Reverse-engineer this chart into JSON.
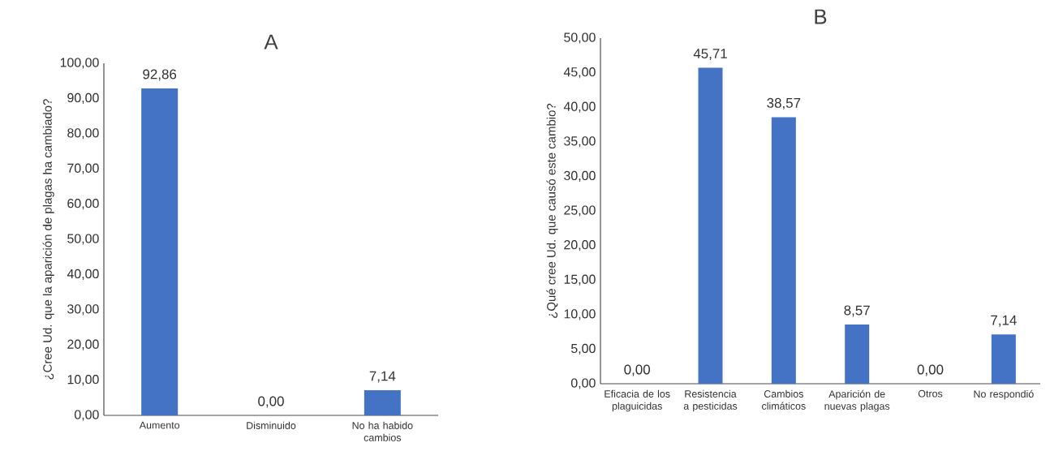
{
  "chart_data": [
    {
      "type": "bar",
      "title": "A",
      "ylabel": "¿Cree Ud. que la aparición de plagas ha cambiado?",
      "categories": [
        "Aumento",
        "Disminuido",
        "No ha habido cambios"
      ],
      "values": [
        92.86,
        0,
        7.14
      ],
      "value_labels": [
        "92,86",
        "0,00",
        "7,14"
      ],
      "color": "#4472c4",
      "ylim": [
        0,
        100
      ],
      "yticks": [
        {
          "value": 0,
          "label": "0,00"
        },
        {
          "value": 10,
          "label": "10,00"
        },
        {
          "value": 20,
          "label": "20,00"
        },
        {
          "value": 30,
          "label": "30,00"
        },
        {
          "value": 40,
          "label": "40,00"
        },
        {
          "value": 50,
          "label": "50,00"
        },
        {
          "value": 60,
          "label": "60,00"
        },
        {
          "value": 70,
          "label": "70,00"
        },
        {
          "value": 80,
          "label": "80,00"
        },
        {
          "value": 90,
          "label": "90,00"
        },
        {
          "value": 100,
          "label": "100,00"
        }
      ]
    },
    {
      "type": "bar",
      "title": "B",
      "ylabel": "¿Qué cree Ud. que causó este cambio?",
      "categories": [
        "Eficacia de los plaguicidas",
        "Resistencia a pesticidas",
        "Cambios climáticos",
        "Aparición de nuevas plagas",
        "Otros",
        "No respondió"
      ],
      "values": [
        0,
        45.71,
        38.57,
        8.57,
        0,
        7.14
      ],
      "value_labels": [
        "0,00",
        "45,71",
        "38,57",
        "8,57",
        "0,00",
        "7,14"
      ],
      "color": "#4472c4",
      "ylim": [
        0,
        50
      ],
      "yticks": [
        {
          "value": 0,
          "label": "0,00"
        },
        {
          "value": 5,
          "label": "5,00"
        },
        {
          "value": 10,
          "label": "10,00"
        },
        {
          "value": 15,
          "label": "15,00"
        },
        {
          "value": 20,
          "label": "20,00"
        },
        {
          "value": 25,
          "label": "25,00"
        },
        {
          "value": 30,
          "label": "30,00"
        },
        {
          "value": 35,
          "label": "35,00"
        },
        {
          "value": 40,
          "label": "40,00"
        },
        {
          "value": 45,
          "label": "45,00"
        },
        {
          "value": 50,
          "label": "50,00"
        }
      ]
    }
  ]
}
